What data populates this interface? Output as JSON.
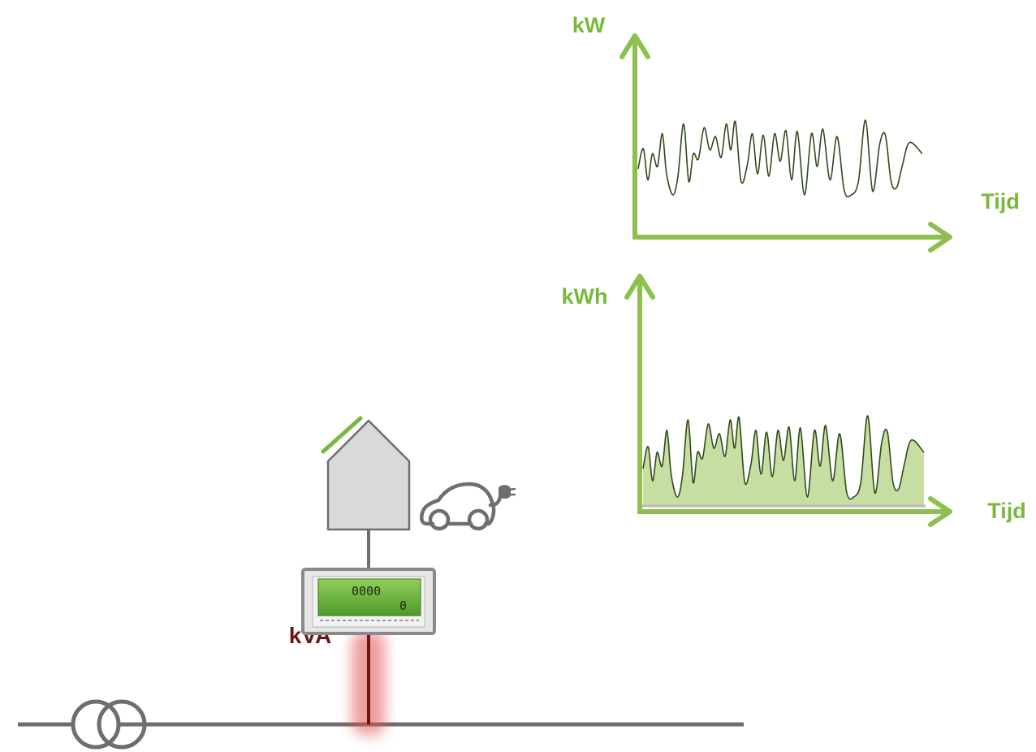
{
  "colors": {
    "accent_green": "#78b93c",
    "axis_green": "#8dc04f",
    "signal_line": "#2f4a1a",
    "fill_green": "#c7dea3",
    "grid_gray": "#777777",
    "house_gray": "#d9d9d9",
    "kva_red": "#6b1414",
    "lcd_green": "#5fa63a"
  },
  "chart_power": {
    "y_label": "kW",
    "x_label": "Tijd"
  },
  "chart_energy": {
    "y_label": "kWh",
    "x_label": "Tijd"
  },
  "meter": {
    "reading": "0000",
    "small_reading": "0"
  },
  "grid": {
    "connection_label": "kVA"
  },
  "icons": [
    "transformer-icon",
    "house-icon",
    "solar-panel-icon",
    "electric-car-icon",
    "plug-icon",
    "smart-meter-icon"
  ]
}
